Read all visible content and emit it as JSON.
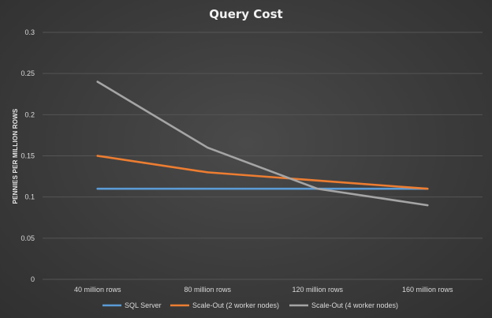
{
  "chart_data": {
    "type": "line",
    "title": "Query Cost",
    "xlabel": "",
    "ylabel": "PENNIES PER MILLION ROWS",
    "categories": [
      "40 million rows",
      "80 million rows",
      "120 million rows",
      "160 million rows"
    ],
    "yticks": [
      "0",
      "0.05",
      "0.1",
      "0.15",
      "0.2",
      "0.25",
      "0.3"
    ],
    "ylim": [
      0,
      0.3
    ],
    "grid": true,
    "legend_position": "bottom",
    "series": [
      {
        "name": "SQL Server",
        "color": "#5b9bd5",
        "values": [
          0.11,
          0.11,
          0.11,
          0.11
        ]
      },
      {
        "name": "Scale-Out (2 worker nodes)",
        "color": "#ed7d31",
        "values": [
          0.15,
          0.13,
          0.12,
          0.11
        ]
      },
      {
        "name": "Scale-Out (4 worker nodes)",
        "color": "#a5a5a5",
        "values": [
          0.24,
          0.16,
          0.11,
          0.09
        ]
      }
    ]
  }
}
